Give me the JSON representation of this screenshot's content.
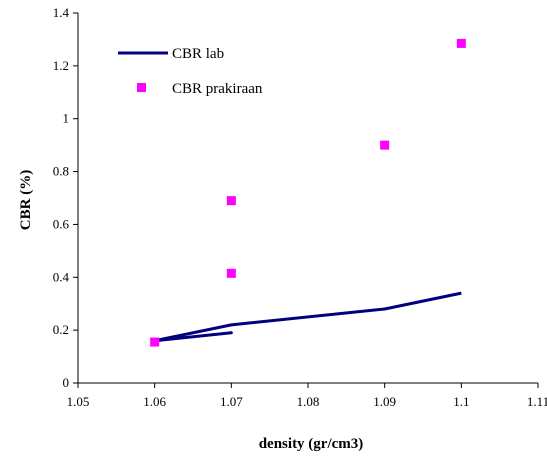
{
  "chart_data": {
    "type": "scatter",
    "xlabel": "density (gr/cm3)",
    "ylabel": "CBR (%)",
    "xlim": [
      1.05,
      1.11
    ],
    "ylim": [
      0,
      1.4
    ],
    "x_ticks": [
      1.05,
      1.06,
      1.07,
      1.08,
      1.09,
      1.1,
      1.11
    ],
    "x_tick_labels": [
      "1.05",
      "1.06",
      "1.07",
      "1.08",
      "1.09",
      "1.1",
      "1.11"
    ],
    "y_ticks": [
      0,
      0.2,
      0.4,
      0.6,
      0.8,
      1,
      1.2,
      1.4
    ],
    "y_tick_labels": [
      "0",
      "0.2",
      "0.4",
      "0.6",
      "0.8",
      "1",
      "1.2",
      "1.4"
    ],
    "grid": false,
    "legend_position": "top-left",
    "series": [
      {
        "name": "CBR lab",
        "kind": "line",
        "color": "#000080",
        "points": [
          {
            "x": 1.06,
            "y": 0.16
          },
          {
            "x": 1.07,
            "y": 0.19
          },
          {
            "x": 1.06,
            "y": 0.16
          },
          {
            "x": 1.07,
            "y": 0.22
          },
          {
            "x": 1.09,
            "y": 0.28
          },
          {
            "x": 1.1,
            "y": 0.34
          }
        ]
      },
      {
        "name": "CBR prakiraan",
        "kind": "marker",
        "marker": "square",
        "color": "#ff00ff",
        "points": [
          {
            "x": 1.06,
            "y": 0.155
          },
          {
            "x": 1.07,
            "y": 0.69
          },
          {
            "x": 1.07,
            "y": 0.415
          },
          {
            "x": 1.09,
            "y": 0.9
          },
          {
            "x": 1.1,
            "y": 1.285
          }
        ]
      }
    ]
  }
}
